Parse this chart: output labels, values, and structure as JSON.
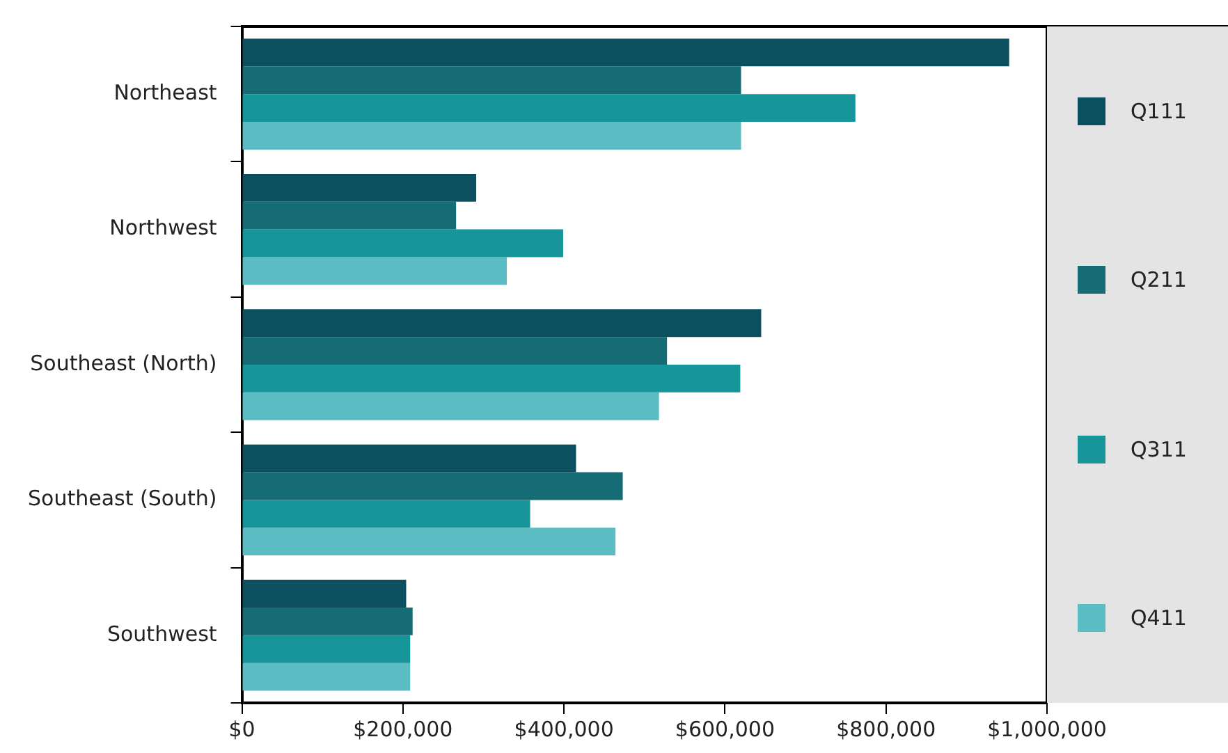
{
  "chart_data": {
    "type": "bar",
    "orientation": "horizontal",
    "categories": [
      "Northeast",
      "Northwest",
      "Southeast (North)",
      "Southeast (South)",
      "Southwest"
    ],
    "series": [
      {
        "name": "Q111",
        "color": "#0c4f5e",
        "values": [
          953000,
          291000,
          645000,
          415000,
          204000
        ]
      },
      {
        "name": "Q211",
        "color": "#156c74",
        "values": [
          620000,
          266000,
          528000,
          473000,
          212000
        ]
      },
      {
        "name": "Q311",
        "color": "#16959b",
        "values": [
          762000,
          399000,
          619000,
          358000,
          209000
        ]
      },
      {
        "name": "Q411",
        "color": "#5bbcc3",
        "values": [
          620000,
          329000,
          518000,
          464000,
          209000
        ]
      }
    ],
    "xlim": [
      0,
      1000000
    ],
    "xticks": [
      {
        "value": 0,
        "label": "$0"
      },
      {
        "value": 200000,
        "label": "$200,000"
      },
      {
        "value": 400000,
        "label": "$400,000"
      },
      {
        "value": 600000,
        "label": "$600,000"
      },
      {
        "value": 800000,
        "label": "$800,000"
      },
      {
        "value": 1000000,
        "label": "$1,000,000"
      }
    ],
    "grid": false,
    "legend": "right"
  }
}
